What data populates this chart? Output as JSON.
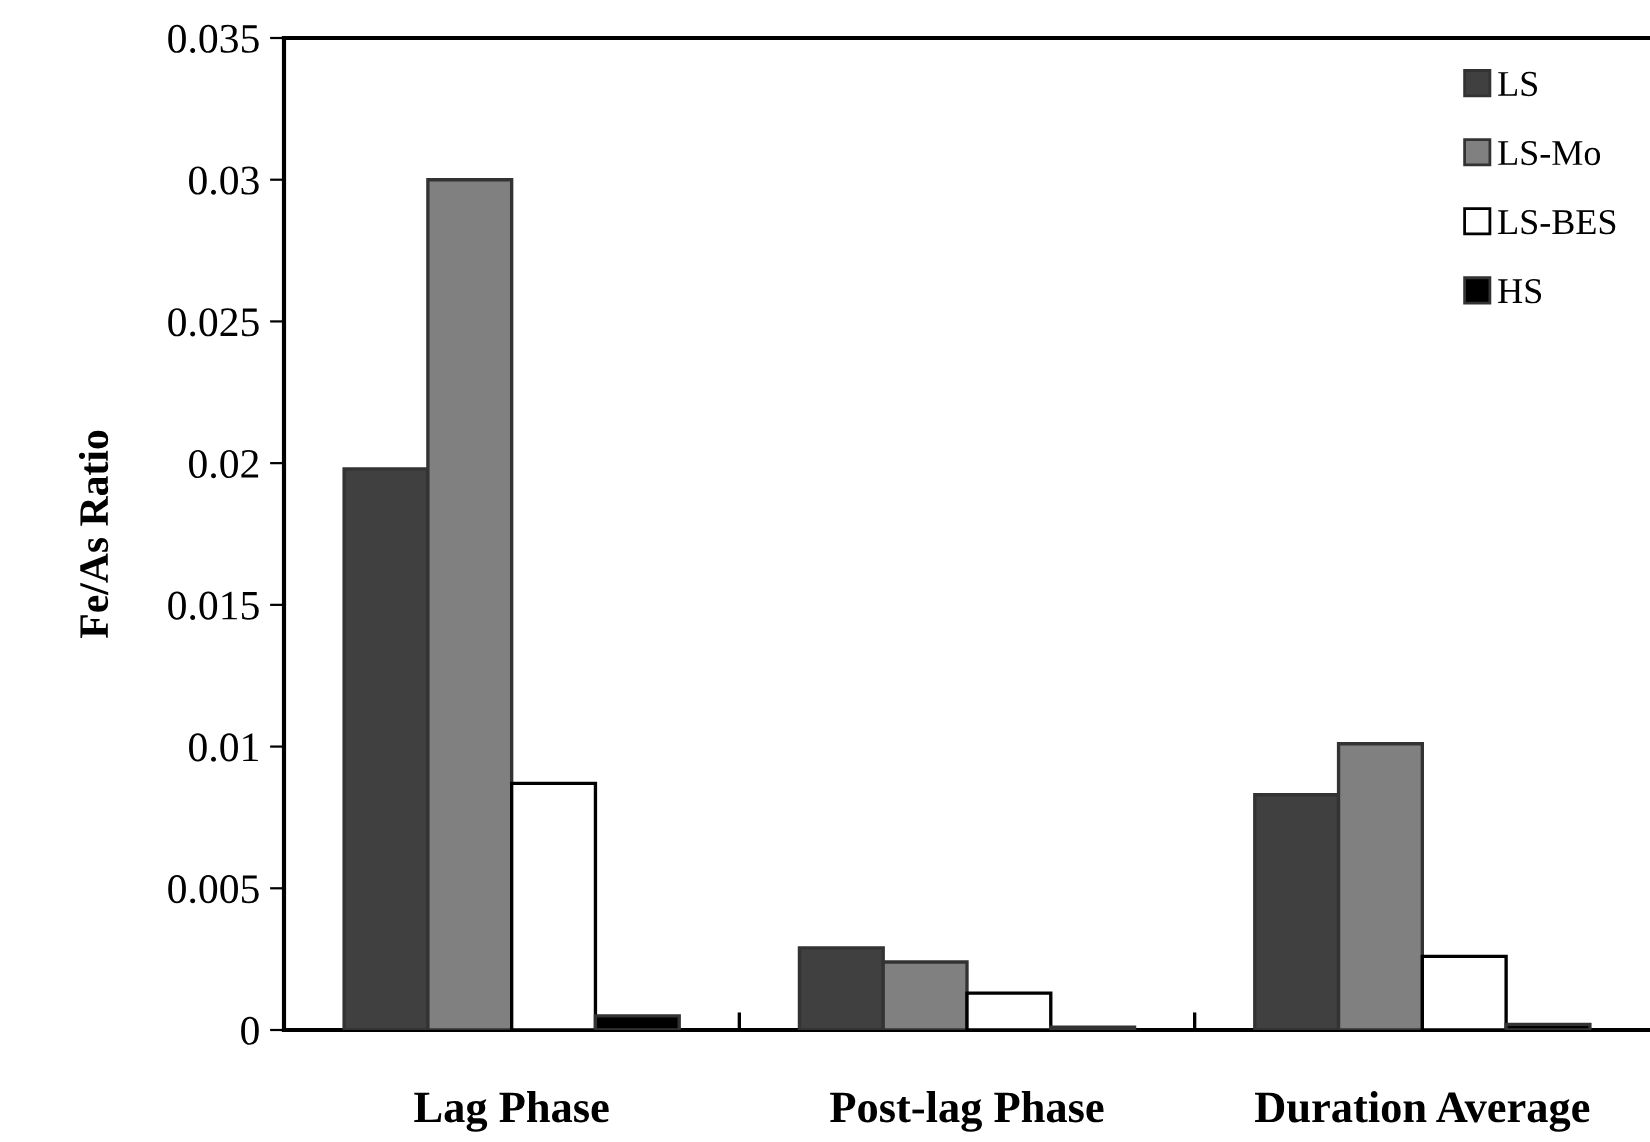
{
  "chart_data": {
    "type": "bar",
    "ylabel": "Fe/As Ratio",
    "categories": [
      "Lag Phase",
      "Post-lag Phase",
      "Duration Average"
    ],
    "series": [
      {
        "name": "LS",
        "color": "#404040",
        "values": [
          0.0198,
          0.0029,
          0.0083
        ]
      },
      {
        "name": "LS-Mo",
        "color": "#808080",
        "values": [
          0.03,
          0.0024,
          0.0101
        ]
      },
      {
        "name": "LS-BES",
        "color": "#ffffff",
        "values": [
          0.0087,
          0.0013,
          0.0026
        ]
      },
      {
        "name": "HS",
        "color": "#000000",
        "values": [
          0.0005,
          0.0001,
          0.0002
        ]
      }
    ],
    "ylim": [
      0,
      0.035
    ],
    "yticks": [
      0,
      0.005,
      0.01,
      0.015,
      0.02,
      0.025,
      0.03,
      0.035
    ],
    "grid": false,
    "legend": "top right"
  }
}
